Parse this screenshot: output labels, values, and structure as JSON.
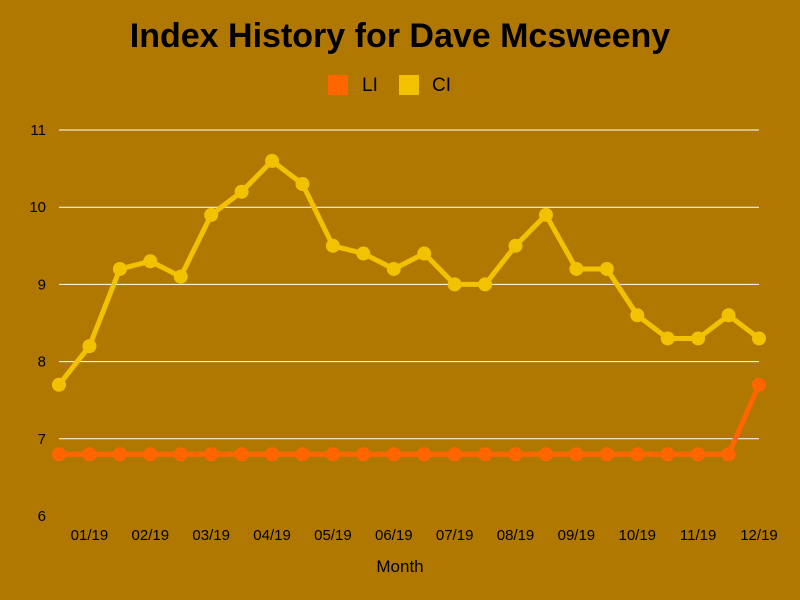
{
  "chart_data": {
    "type": "line",
    "title": "Index History for Dave Mcsweeny",
    "xlabel": "Month",
    "ylabel": "",
    "ylim": [
      6,
      11
    ],
    "yticks": [
      6,
      7,
      8,
      9,
      10,
      11
    ],
    "grid": true,
    "legend_position": "top-center",
    "background_color": "#b07800",
    "x_tick_labels": [
      "01/19",
      "02/19",
      "03/19",
      "04/19",
      "05/19",
      "06/19",
      "07/19",
      "08/19",
      "09/19",
      "10/19",
      "11/19",
      "12/19"
    ],
    "series": [
      {
        "name": "LI",
        "color": "#ff6600",
        "values": [
          6.8,
          6.8,
          6.8,
          6.8,
          6.8,
          6.8,
          6.8,
          6.8,
          6.8,
          6.8,
          6.8,
          6.8,
          6.8,
          6.8,
          6.8,
          6.8,
          6.8,
          6.8,
          6.8,
          6.8,
          6.8,
          6.8,
          6.8,
          7.7
        ]
      },
      {
        "name": "CI",
        "color": "#f2c200",
        "values": [
          7.7,
          8.2,
          9.2,
          9.3,
          9.1,
          9.9,
          10.2,
          10.6,
          10.3,
          9.5,
          9.4,
          9.2,
          9.4,
          9.0,
          9.0,
          9.5,
          9.9,
          9.2,
          9.2,
          8.6,
          8.3,
          8.3,
          8.6,
          8.3
        ]
      }
    ]
  }
}
